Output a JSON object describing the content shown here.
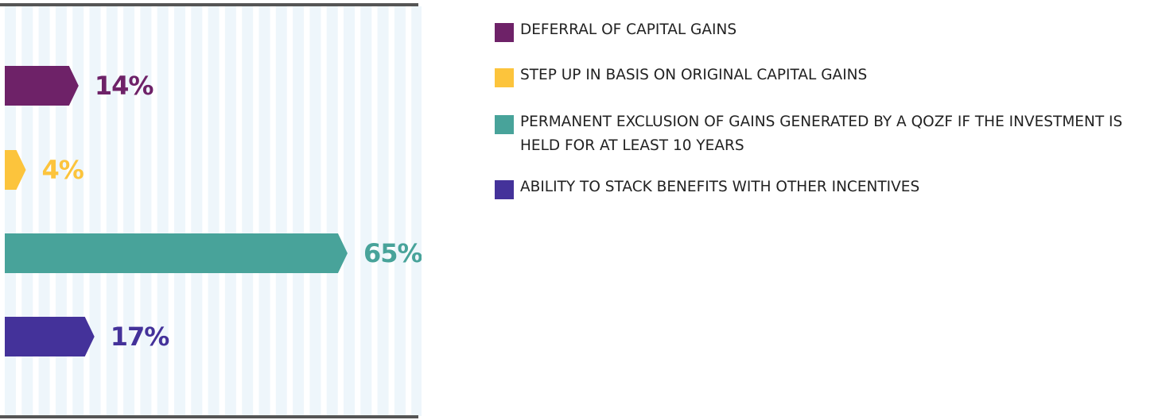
{
  "chart_data": {
    "type": "bar",
    "categories": [
      "DEFERRAL OF CAPITAL GAINS",
      "STEP UP IN BASIS ON ORIGINAL CAPITAL GAINS",
      "PERMANENT EXCLUSION OF GAINS GENERATED BY A QOZF IF THE INVESTMENT IS HELD FOR AT LEAST 10 YEARS",
      "ABILITY TO STACK BENEFITS WITH OTHER INCENTIVES"
    ],
    "values": [
      14,
      4,
      65,
      17
    ],
    "value_labels": [
      "14%",
      "4%",
      "65%",
      "17%"
    ],
    "colors": [
      "#6e2268",
      "#fcc43c",
      "#48a39a",
      "#44329a"
    ]
  }
}
